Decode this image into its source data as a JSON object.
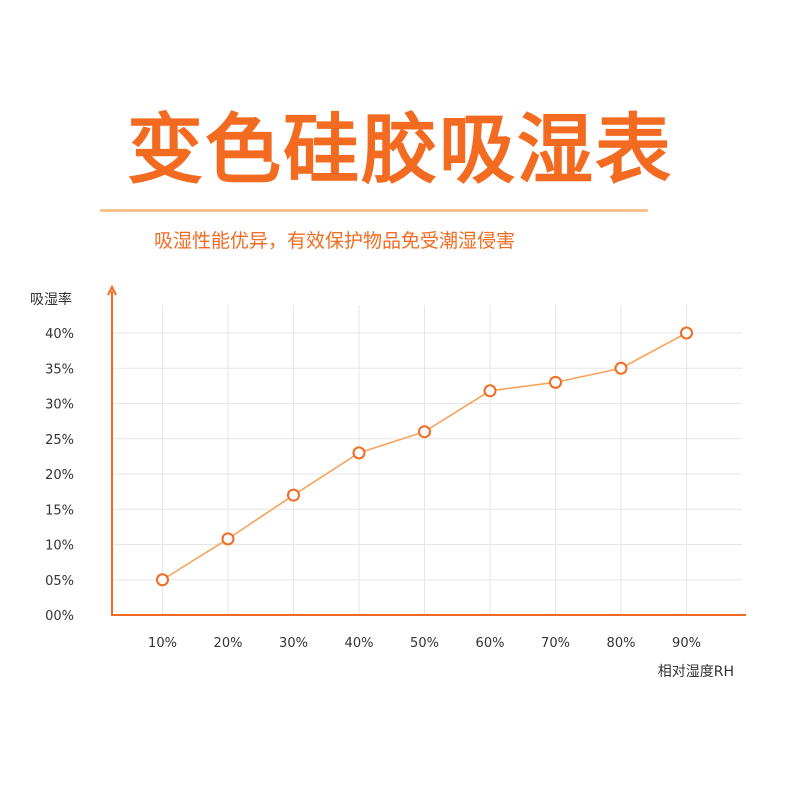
{
  "title": "变色硅胶吸湿表",
  "subtitle": "吸湿性能优异，有效保护物品免受潮湿侵害",
  "colors": {
    "accent": "#f26b21",
    "line": "#f7a35c",
    "rule": "#f7c08d",
    "grid": "#e6e6e6",
    "text": "#333333",
    "marker_fill": "#ffffff"
  },
  "chart_data": {
    "type": "line",
    "ylabel": "吸湿率",
    "xlabel": "相对湿度RH",
    "categories": [
      "10%",
      "20%",
      "30%",
      "40%",
      "50%",
      "60%",
      "70%",
      "80%",
      "90%"
    ],
    "x": [
      10,
      20,
      30,
      40,
      50,
      60,
      70,
      80,
      90
    ],
    "y_ticks": [
      "00%",
      "05%",
      "10%",
      "15%",
      "20%",
      "25%",
      "30%",
      "35%",
      "40%"
    ],
    "series": [
      {
        "values": [
          5,
          10.8,
          17,
          23,
          26,
          31.8,
          33,
          35,
          40
        ]
      }
    ],
    "xlim": [
      0,
      90
    ],
    "ylim": [
      0,
      40
    ],
    "grid": true,
    "legend": "none"
  }
}
